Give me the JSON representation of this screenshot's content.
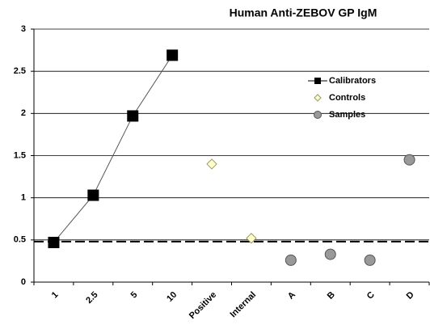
{
  "chart_data": {
    "type": "scatter",
    "title": "Human Anti-ZEBOV GP IgM",
    "categories": [
      "1",
      "2.5",
      "5",
      "10",
      "Positive",
      "Internal",
      "A",
      "B",
      "C",
      "D"
    ],
    "series": [
      {
        "name": "Calibrators",
        "color": "#000000",
        "marker": "square",
        "line": true,
        "values": [
          0.47,
          1.03,
          1.97,
          2.69,
          null,
          null,
          null,
          null,
          null,
          null
        ]
      },
      {
        "name": "Controls",
        "color": "#ffffcc",
        "marker": "diamond",
        "line": false,
        "values": [
          null,
          null,
          null,
          null,
          1.4,
          0.52,
          null,
          null,
          null,
          null
        ]
      },
      {
        "name": "Samples",
        "color": "#999999",
        "marker": "circle",
        "line": false,
        "values": [
          null,
          null,
          null,
          null,
          null,
          null,
          0.26,
          0.33,
          0.26,
          1.45
        ]
      }
    ],
    "cutoff": 0.48,
    "ylim": [
      0,
      3
    ],
    "yticks": [
      0,
      0.5,
      1,
      1.5,
      2,
      2.5,
      3
    ],
    "grid": true,
    "legend": "upper right"
  }
}
